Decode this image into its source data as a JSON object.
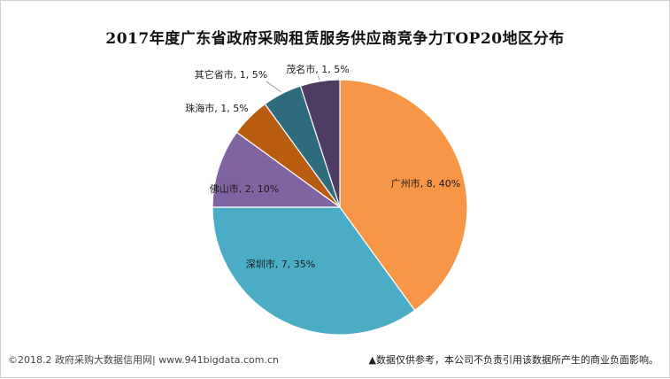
{
  "chart_data": {
    "type": "pie",
    "title": "2017年度广东省政府采购租赁服务供应商竞争力TOP20地区分布",
    "legend": "none",
    "slices": [
      {
        "name": "广州市",
        "value": 8,
        "percent": 40,
        "label": "广州市, 8, 40%",
        "color": "#f79646"
      },
      {
        "name": "深圳市",
        "value": 7,
        "percent": 35,
        "label": "深圳市, 7, 35%",
        "color": "#4bacc6"
      },
      {
        "name": "佛山市",
        "value": 2,
        "percent": 10,
        "label": "佛山市, 2, 10%",
        "color": "#8064a2"
      },
      {
        "name": "珠海市",
        "value": 1,
        "percent": 5,
        "label": "珠海市, 1, 5%",
        "color": "#b85c10"
      },
      {
        "name": "其它省市",
        "value": 1,
        "percent": 5,
        "label": "其它省市, 1, 5%",
        "color": "#2e6b7d"
      },
      {
        "name": "茂名市",
        "value": 1,
        "percent": 5,
        "label": "茂名市, 1, 5%",
        "color": "#4f3c63"
      }
    ]
  },
  "footer": {
    "source": "©2018.2 政府采购大数据信用网| www.941bigdata.com.cn",
    "disclaimer": "▲数据仅供参考，本公司不负责引用该数据所产生的商业负面影响。"
  }
}
